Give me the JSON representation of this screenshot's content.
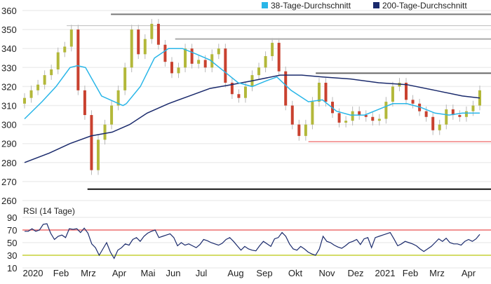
{
  "chart_data": [
    {
      "type": "candlestick",
      "title": "",
      "ylim": [
        260,
        360
      ],
      "yticks": [
        260,
        270,
        280,
        290,
        300,
        310,
        320,
        330,
        340,
        350,
        360
      ],
      "grid": true,
      "legend_position": "top-right",
      "legend": [
        {
          "name": "38-Tage-Durchschnitt",
          "color": "#29b6e8"
        },
        {
          "name": "200-Tage-Durchschnitt",
          "color": "#1a2a6c"
        }
      ],
      "x_unit": "week index",
      "weekly_closes": [
        314,
        318,
        321,
        326,
        329,
        338,
        341,
        350,
        318,
        305,
        276,
        292,
        300,
        310,
        318,
        330,
        350,
        337,
        345,
        353,
        342,
        333,
        327,
        330,
        340,
        332,
        334,
        330,
        337,
        340,
        322,
        316,
        314,
        320,
        326,
        330,
        336,
        343,
        328,
        310,
        300,
        294,
        300,
        312,
        322,
        312,
        306,
        301,
        302,
        307,
        305,
        304,
        302,
        303,
        312,
        320,
        322,
        313,
        311,
        307,
        304,
        297,
        300,
        308,
        305,
        304,
        307,
        310,
        318
      ],
      "ma38": [
        [
          0,
          303
        ],
        [
          2.6,
          312
        ],
        [
          4.7,
          320
        ],
        [
          6.8,
          330
        ],
        [
          7.9,
          331
        ],
        [
          9.1,
          330
        ],
        [
          11.5,
          315
        ],
        [
          14.7,
          310
        ],
        [
          15.2,
          311
        ],
        [
          17.3,
          320
        ],
        [
          19.4,
          335
        ],
        [
          21.5,
          340
        ],
        [
          23.6,
          340
        ],
        [
          25.7,
          337
        ],
        [
          27.7,
          334
        ],
        [
          29.8,
          328
        ],
        [
          31.9,
          322
        ],
        [
          34,
          320
        ],
        [
          36.1,
          323
        ],
        [
          37.7,
          325
        ],
        [
          39.8,
          318
        ],
        [
          42.4,
          312
        ],
        [
          44.5,
          313
        ],
        [
          46.6,
          307
        ],
        [
          48.7,
          305
        ],
        [
          50.8,
          305
        ],
        [
          52.9,
          308
        ],
        [
          55,
          311
        ],
        [
          57.1,
          311
        ],
        [
          59.2,
          309
        ],
        [
          61.3,
          306
        ],
        [
          63.4,
          305
        ],
        [
          65.4,
          306
        ],
        [
          68,
          306
        ]
      ],
      "ma200": [
        [
          0,
          280
        ],
        [
          3.7,
          285
        ],
        [
          6.8,
          290
        ],
        [
          9.9,
          294
        ],
        [
          13.1,
          296
        ],
        [
          15.7,
          300
        ],
        [
          18.3,
          306
        ],
        [
          21.5,
          311
        ],
        [
          24.6,
          315
        ],
        [
          27.7,
          319
        ],
        [
          30.9,
          321
        ],
        [
          34,
          323
        ],
        [
          38.2,
          326
        ],
        [
          41.4,
          326
        ],
        [
          44.5,
          325
        ],
        [
          48.7,
          324
        ],
        [
          52.9,
          322
        ],
        [
          57.1,
          321
        ],
        [
          61.3,
          318
        ],
        [
          65.4,
          315
        ],
        [
          68,
          314
        ]
      ],
      "levels": [
        {
          "value": 358,
          "from_week": 12.9,
          "color": "#777777"
        },
        {
          "value": 352,
          "from_week": 6.3,
          "color": "#bbbbbb"
        },
        {
          "value": 345,
          "from_week": 22.5,
          "color": "#aaaaaa"
        },
        {
          "value": 327,
          "from_week": 43.5,
          "color": "#666666"
        },
        {
          "value": 291,
          "from_week": 42.4,
          "color": "#f4a0a0"
        },
        {
          "value": 266,
          "from_week": 9.4,
          "color": "#111111"
        }
      ]
    },
    {
      "type": "line",
      "title": "RSI (14 Tage)",
      "ylim": [
        10,
        90
      ],
      "yticks": [
        10,
        30,
        50,
        70,
        90
      ],
      "reference_lines": [
        {
          "value": 70,
          "color": "#f07070"
        },
        {
          "value": 30,
          "color": "#c8d43a"
        }
      ],
      "values": [
        68,
        68,
        72,
        68,
        70,
        79,
        80,
        65,
        55,
        60,
        62,
        58,
        72,
        71,
        72,
        66,
        73,
        65,
        48,
        42,
        30,
        40,
        50,
        35,
        25,
        38,
        42,
        48,
        46,
        55,
        58,
        52,
        60,
        65,
        68,
        70,
        58,
        60,
        62,
        64,
        58,
        45,
        50,
        46,
        48,
        45,
        42,
        47,
        55,
        53,
        50,
        48,
        46,
        49,
        55,
        58,
        52,
        45,
        38,
        44,
        40,
        38,
        37,
        45,
        52,
        48,
        44,
        56,
        58,
        66,
        60,
        48,
        40,
        38,
        44,
        40,
        35,
        32,
        30,
        40,
        60,
        52,
        50,
        46,
        43,
        41,
        45,
        50,
        52,
        55,
        47,
        56,
        58,
        42,
        58,
        60,
        62,
        64,
        66,
        56,
        45,
        48,
        52,
        50,
        48,
        45,
        40,
        36,
        40,
        44,
        50,
        56,
        52,
        57,
        50,
        48,
        48,
        46,
        52,
        55,
        52,
        56,
        63
      ],
      "x_tick_labels": [
        "2020",
        "Feb",
        "Mrz",
        "Apr",
        "Mai",
        "Jun",
        "Jul",
        "Aug",
        "Sep",
        "Okt",
        "Nov",
        "Dez",
        "2021",
        "Feb",
        "Mrz",
        "Apr"
      ]
    }
  ],
  "colors": {
    "up": "#b3b83a",
    "down": "#c9412f",
    "wick": "#b8b8b8",
    "grid": "#eeeeee"
  }
}
